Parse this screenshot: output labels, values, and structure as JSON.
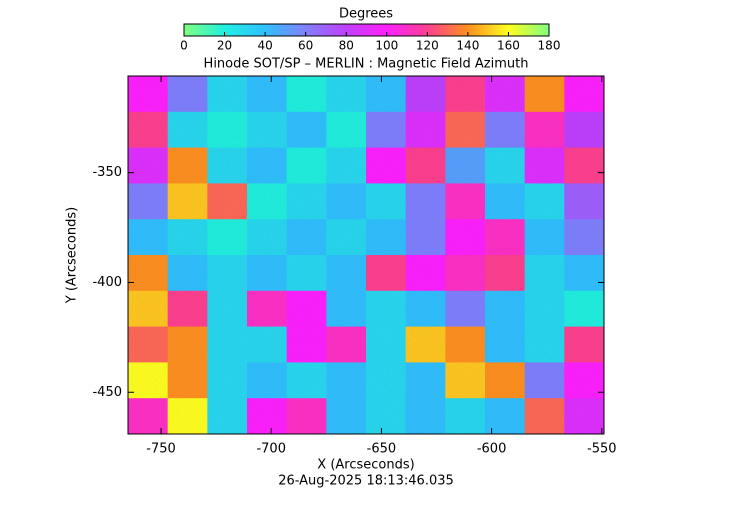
{
  "chart_data": {
    "type": "heatmap",
    "title": "Hinode SOT/SP – MERLIN : Magnetic Field Azimuth",
    "subtitle": "26-Aug-2025 18:13:46.035",
    "x_label": "X (Arcseconds)",
    "y_label": "Y (Arcseconds)",
    "colorbar_label": "Degrees",
    "zlim": [
      0,
      180
    ],
    "colorbar_ticks": [
      0,
      20,
      40,
      60,
      80,
      100,
      120,
      140,
      160,
      180
    ],
    "colors": [
      "#80ff80",
      "#20f0e0",
      "#30c0ff",
      "#8080ff",
      "#c040ff",
      "#ff20ff",
      "#ff4090",
      "#ff9020",
      "#ffff20",
      "#80ff80"
    ],
    "xlim": [
      -765,
      -549
    ],
    "ylim": [
      -469,
      -306
    ],
    "xticks": [
      -750,
      -700,
      -650,
      -600,
      -550
    ],
    "yticks": [
      -350,
      -400,
      -450
    ],
    "z": [
      [
        100,
        60,
        30,
        40,
        20,
        30,
        40,
        80,
        120,
        90,
        140,
        100
      ],
      [
        120,
        30,
        20,
        30,
        40,
        20,
        60,
        90,
        130,
        60,
        110,
        80
      ],
      [
        90,
        140,
        30,
        40,
        20,
        30,
        100,
        120,
        50,
        30,
        90,
        120
      ],
      [
        60,
        150,
        130,
        20,
        30,
        40,
        30,
        60,
        110,
        40,
        30,
        70
      ],
      [
        40,
        30,
        20,
        30,
        40,
        30,
        40,
        60,
        100,
        110,
        40,
        60
      ],
      [
        140,
        40,
        30,
        40,
        30,
        40,
        120,
        100,
        110,
        120,
        30,
        40
      ],
      [
        150,
        120,
        30,
        110,
        100,
        40,
        30,
        40,
        60,
        40,
        30,
        20
      ],
      [
        130,
        140,
        30,
        30,
        100,
        110,
        30,
        150,
        140,
        40,
        30,
        120
      ],
      [
        160,
        140,
        30,
        40,
        30,
        40,
        30,
        40,
        150,
        140,
        60,
        100
      ],
      [
        110,
        160,
        30,
        100,
        110,
        40,
        30,
        40,
        30,
        40,
        130,
        90
      ]
    ]
  }
}
